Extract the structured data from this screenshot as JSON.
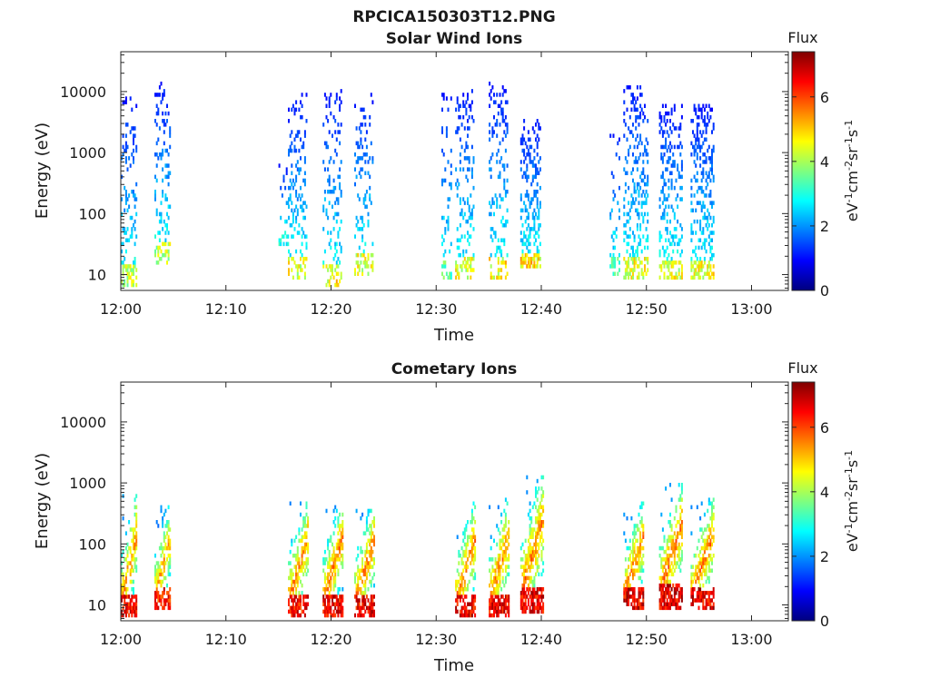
{
  "figure": {
    "title": "RPCICA150303T12.PNG"
  },
  "colorscale": {
    "name": "jet",
    "min": 0,
    "max": 7.4,
    "stops": [
      "#00007f",
      "#0000ff",
      "#007fff",
      "#00ffff",
      "#7fff7f",
      "#ffff00",
      "#ff7f00",
      "#ff0000",
      "#7f0000"
    ]
  },
  "chart_data": [
    {
      "type": "heatmap",
      "title": "Solar Wind Ions",
      "xlabel": "Time",
      "ylabel": "Energy (eV)",
      "x_ticks": [
        "12:00",
        "12:10",
        "12:20",
        "12:30",
        "12:40",
        "12:50",
        "13:00"
      ],
      "y_ticks": [
        "10",
        "100",
        "1000",
        "10000"
      ],
      "xlim_minutes": [
        0,
        63.5
      ],
      "ylim_log_ev": [
        5.5,
        45000
      ],
      "y_scale": "log",
      "colorbar": {
        "title": "Flux",
        "label": "eV-1cm-2sr-1s-1",
        "ticks": [
          "0",
          "2",
          "4",
          "6"
        ]
      },
      "bursts": [
        {
          "start_min": 0.0,
          "width_min": 1.5,
          "e_low": 6,
          "e_high": 8000,
          "flux_peak": 4.6,
          "density": 0.35
        },
        {
          "start_min": 3.2,
          "width_min": 1.6,
          "e_low": 15,
          "e_high": 14000,
          "flux_peak": 4.6,
          "density": 0.35
        },
        {
          "start_min": 15.0,
          "width_min": 1.0,
          "e_low": 30,
          "e_high": 700,
          "flux_peak": 3.2,
          "density": 0.25
        },
        {
          "start_min": 15.9,
          "width_min": 1.8,
          "e_low": 8,
          "e_high": 9000,
          "flux_peak": 4.9,
          "density": 0.33
        },
        {
          "start_min": 19.2,
          "width_min": 1.8,
          "e_low": 6,
          "e_high": 11000,
          "flux_peak": 5.1,
          "density": 0.33
        },
        {
          "start_min": 22.2,
          "width_min": 1.8,
          "e_low": 10,
          "e_high": 9000,
          "flux_peak": 4.9,
          "density": 0.33
        },
        {
          "start_min": 30.5,
          "width_min": 1.0,
          "e_low": 8,
          "e_high": 9000,
          "flux_peak": 3.8,
          "density": 0.25
        },
        {
          "start_min": 31.8,
          "width_min": 1.8,
          "e_low": 8,
          "e_high": 11000,
          "flux_peak": 4.9,
          "density": 0.33
        },
        {
          "start_min": 35.0,
          "width_min": 1.8,
          "e_low": 8,
          "e_high": 14000,
          "flux_peak": 5.1,
          "density": 0.33
        },
        {
          "start_min": 38.0,
          "width_min": 2.0,
          "e_low": 12,
          "e_high": 3500,
          "flux_peak": 5.3,
          "density": 0.55
        },
        {
          "start_min": 46.5,
          "width_min": 1.0,
          "e_low": 10,
          "e_high": 2000,
          "flux_peak": 3.6,
          "density": 0.25
        },
        {
          "start_min": 47.8,
          "width_min": 2.4,
          "e_low": 8,
          "e_high": 13000,
          "flux_peak": 4.9,
          "density": 0.4
        },
        {
          "start_min": 51.2,
          "width_min": 2.2,
          "e_low": 8,
          "e_high": 6000,
          "flux_peak": 4.9,
          "density": 0.45
        },
        {
          "start_min": 54.2,
          "width_min": 2.2,
          "e_low": 8,
          "e_high": 6000,
          "flux_peak": 5.1,
          "density": 0.55
        }
      ]
    },
    {
      "type": "heatmap",
      "title": "Cometary Ions",
      "xlabel": "Time",
      "ylabel": "Energy (eV)",
      "x_ticks": [
        "12:00",
        "12:10",
        "12:20",
        "12:30",
        "12:40",
        "12:50",
        "13:00"
      ],
      "y_ticks": [
        "10",
        "100",
        "1000",
        "10000"
      ],
      "xlim_minutes": [
        0,
        63.5
      ],
      "ylim_log_ev": [
        5.5,
        45000
      ],
      "y_scale": "log",
      "colorbar": {
        "title": "Flux",
        "label": "eV-1cm-2sr-1s-1",
        "ticks": [
          "0",
          "2",
          "4",
          "6"
        ]
      },
      "bursts": [
        {
          "start_min": 0.0,
          "width_min": 1.6,
          "e_low": 6,
          "e_high": 700,
          "flux_peak": 6.8,
          "density": 0.7
        },
        {
          "start_min": 3.2,
          "width_min": 1.6,
          "e_low": 8,
          "e_high": 500,
          "flux_peak": 6.6,
          "density": 0.7
        },
        {
          "start_min": 15.9,
          "width_min": 2.0,
          "e_low": 6,
          "e_high": 600,
          "flux_peak": 6.8,
          "density": 0.7
        },
        {
          "start_min": 19.2,
          "width_min": 2.0,
          "e_low": 6,
          "e_high": 600,
          "flux_peak": 6.9,
          "density": 0.7
        },
        {
          "start_min": 22.2,
          "width_min": 2.0,
          "e_low": 6,
          "e_high": 500,
          "flux_peak": 6.9,
          "density": 0.7
        },
        {
          "start_min": 31.8,
          "width_min": 2.0,
          "e_low": 6,
          "e_high": 550,
          "flux_peak": 6.9,
          "density": 0.7
        },
        {
          "start_min": 35.0,
          "width_min": 2.0,
          "e_low": 6,
          "e_high": 600,
          "flux_peak": 6.9,
          "density": 0.7
        },
        {
          "start_min": 38.0,
          "width_min": 2.2,
          "e_low": 7,
          "e_high": 1500,
          "flux_peak": 6.9,
          "density": 0.7
        },
        {
          "start_min": 47.8,
          "width_min": 2.0,
          "e_low": 8,
          "e_high": 500,
          "flux_peak": 7.0,
          "density": 0.7
        },
        {
          "start_min": 51.2,
          "width_min": 2.2,
          "e_low": 8,
          "e_high": 1000,
          "flux_peak": 7.0,
          "density": 0.7
        },
        {
          "start_min": 54.2,
          "width_min": 2.2,
          "e_low": 8,
          "e_high": 600,
          "flux_peak": 7.0,
          "density": 0.7
        }
      ]
    }
  ]
}
